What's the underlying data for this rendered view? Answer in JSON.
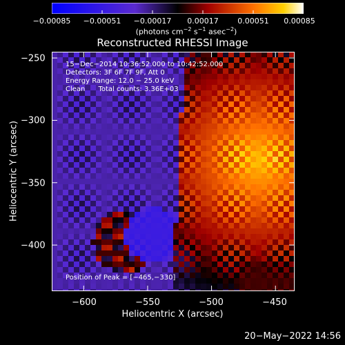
{
  "colorbar": {
    "ticks": [
      "−0.00085",
      "−0.00051",
      "−0.00017",
      "0.00017",
      "0.00051",
      "0.00085"
    ],
    "unit_main": "(photons cm",
    "unit_exp1": "−2",
    "unit_mid": " s",
    "unit_exp2": "−1",
    "unit_tail": " asec",
    "unit_exp3": "−2",
    "unit_close": ")",
    "range": [
      -0.00085,
      0.00085
    ]
  },
  "chart_data": {
    "type": "heatmap",
    "title": "Reconstructed RHESSI Image",
    "xlabel": "Heliocentric X (arcsec)",
    "ylabel": "Heliocentric Y (arcsec)",
    "xlim": [
      -625,
      -435
    ],
    "ylim": [
      -437,
      -245
    ],
    "x_ticks": [
      "−600",
      "−550",
      "−500",
      "−450"
    ],
    "x_tick_values": [
      -600,
      -550,
      -500,
      -450
    ],
    "y_ticks": [
      "−250",
      "−300",
      "−350",
      "−400"
    ],
    "y_tick_values": [
      -250,
      -300,
      -350,
      -400
    ],
    "peak": [
      -465,
      -330
    ],
    "annotations": {
      "line1": "15−Dec−2014 10:36:52.000 to 10:42:52.000",
      "line2": "Detectors: 3F 6F 7F 9F, Att 0",
      "line3": "Energy Range: 12.0 − 25.0 keV",
      "line4": "Clean      Total counts: 3.36E+03",
      "peak_label": "Position of Peak = [−465,−330]"
    }
  },
  "footer": {
    "timestamp": "20−May−2022 14:56"
  }
}
